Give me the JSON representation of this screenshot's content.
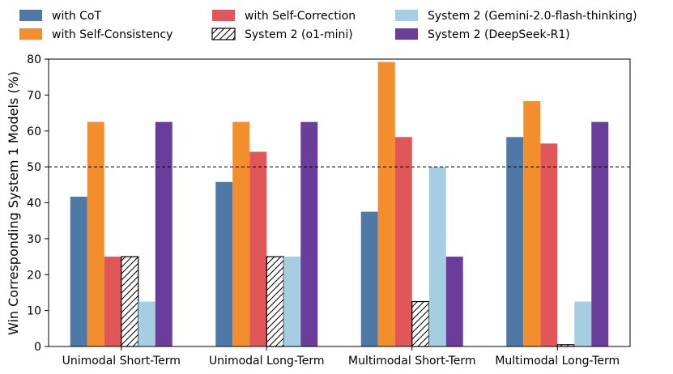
{
  "chart_data": {
    "type": "bar",
    "title": "",
    "xlabel": "",
    "ylabel": "Win Corresponding System 1 Models (%)",
    "ylim": [
      0,
      80
    ],
    "yticks": [
      "0",
      "10",
      "20",
      "30",
      "40",
      "50",
      "60",
      "70",
      "80"
    ],
    "reference_line": {
      "y": 50,
      "style": "dashed"
    },
    "categories": [
      "Unimodal Short-Term",
      "Unimodal Long-Term",
      "Multimodal Short-Term",
      "Multimodal Long-Term"
    ],
    "legend_position": "top",
    "series": [
      {
        "name": "with CoT",
        "color": "#4e79a7",
        "hatch": false,
        "values": [
          41.7,
          45.8,
          37.5,
          58.3
        ]
      },
      {
        "name": "with Self-Consistency",
        "color": "#f28e2b",
        "hatch": false,
        "values": [
          62.5,
          62.5,
          79.2,
          68.3
        ]
      },
      {
        "name": "with Self-Correction",
        "color": "#e15759",
        "hatch": false,
        "values": [
          25.0,
          54.2,
          58.3,
          56.5
        ]
      },
      {
        "name": "System 2 (o1-mini)",
        "color": "#ffffff",
        "hatch": true,
        "values": [
          25.0,
          25.0,
          12.5,
          0.5
        ]
      },
      {
        "name": "System 2 (Gemini-2.0-flash-thinking)",
        "color": "#a6cee3",
        "hatch": false,
        "values": [
          12.5,
          25.0,
          50.0,
          12.5
        ]
      },
      {
        "name": "System 2 (DeepSeek-R1)",
        "color": "#6a3d9a",
        "hatch": false,
        "values": [
          62.5,
          62.5,
          25.0,
          62.5
        ]
      }
    ]
  }
}
